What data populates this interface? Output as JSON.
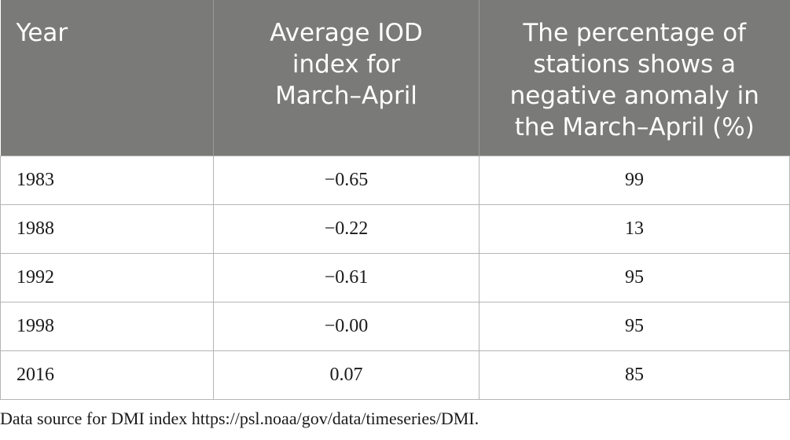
{
  "table": {
    "headers": {
      "year": [
        "Year"
      ],
      "iod": [
        "Average IOD",
        "index for",
        "March–April"
      ],
      "pct": [
        "The percentage of",
        "stations shows a",
        "negative anomaly in",
        "the March–April (%)"
      ]
    },
    "rows": [
      {
        "year": "1983",
        "iod": "−0.65",
        "pct": "99"
      },
      {
        "year": "1988",
        "iod": "−0.22",
        "pct": "13"
      },
      {
        "year": "1992",
        "iod": "−0.61",
        "pct": "95"
      },
      {
        "year": "1998",
        "iod": "−0.00",
        "pct": "95"
      },
      {
        "year": "2016",
        "iod": "0.07",
        "pct": "85"
      }
    ]
  },
  "footnote": "Data source for DMI index https://psl.noaa/gov/data/timeseries/DMI.",
  "colors": {
    "header_bg": "#7a7a78",
    "header_text": "#ffffff",
    "border": "#b5b5b5"
  }
}
